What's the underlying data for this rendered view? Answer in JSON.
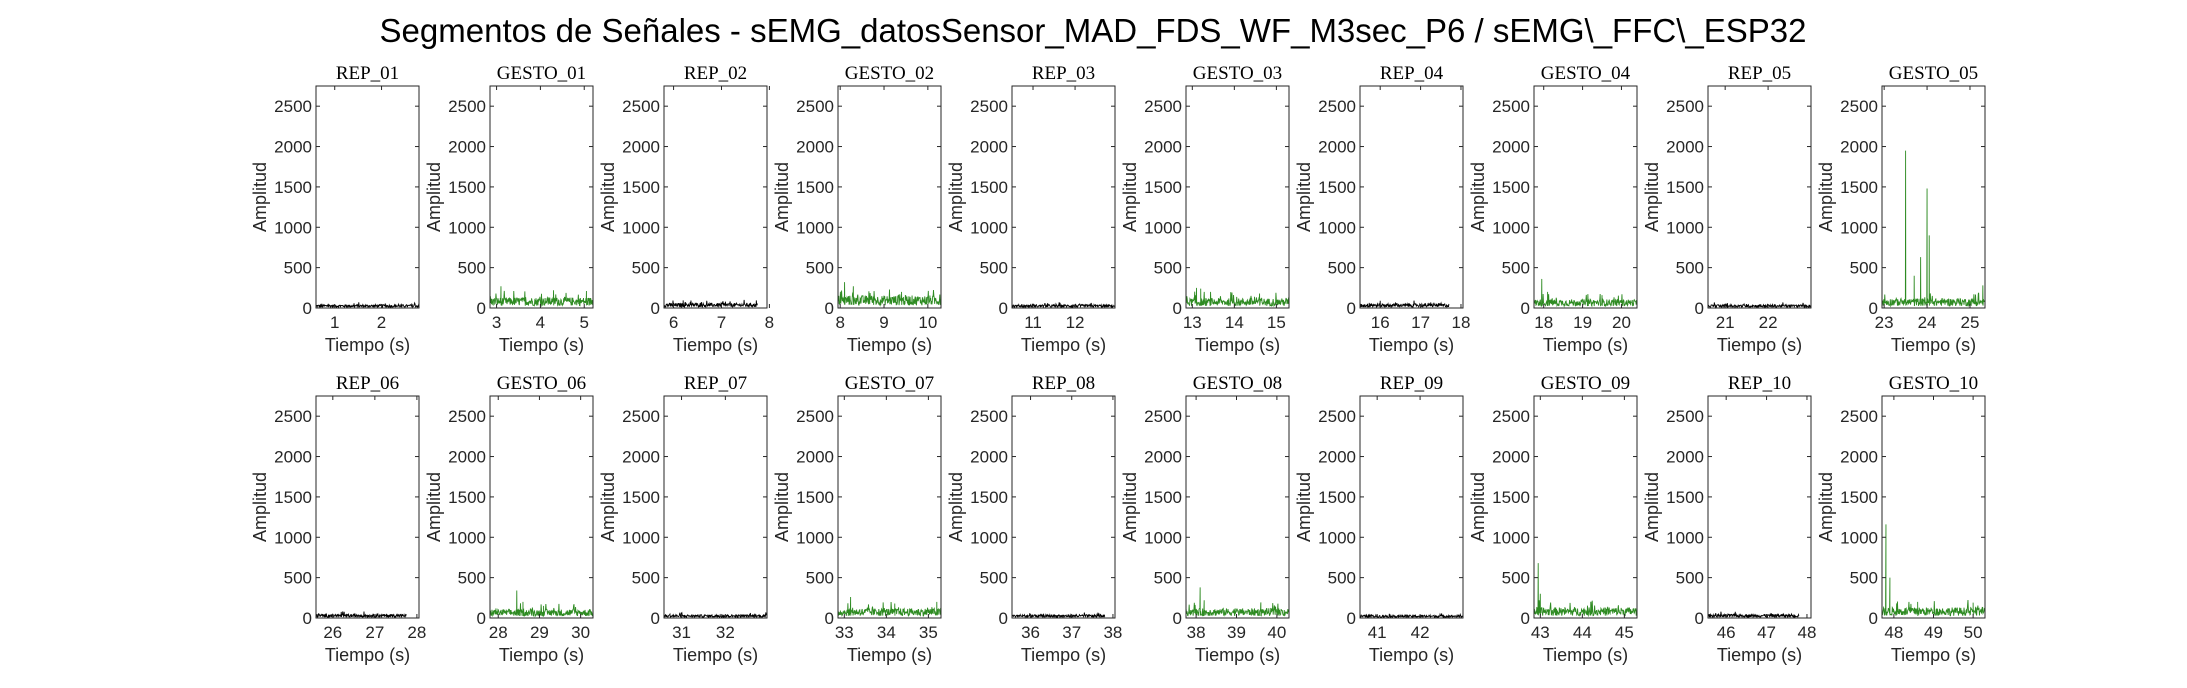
{
  "chart_data": {
    "type": "line",
    "title": "Segmentos de Señales - sEMG_datosSensor_MAD_FDS_WF_M3sec_P6 / sEMG\\_FFC\\_ESP32",
    "xlabel": "Tiempo (s)",
    "ylabel": "Amplitud",
    "ylim": [
      0,
      2750
    ],
    "yticks": [
      0,
      500,
      1000,
      1500,
      2000,
      2500
    ],
    "grid": false,
    "colors": {
      "rep": "#000000",
      "gesto": "#2e8b22"
    },
    "panels": [
      {
        "title": "REP_01",
        "kind": "rep",
        "xlim": [
          0.6,
          2.8
        ],
        "xticks": [
          1,
          2
        ],
        "x_start": 0.6,
        "x_end": 2.8,
        "baseline": 35,
        "peaks": []
      },
      {
        "title": "GESTO_01",
        "kind": "gesto",
        "xlim": [
          2.85,
          5.2
        ],
        "xticks": [
          3,
          4,
          5
        ],
        "x_start": 2.85,
        "x_end": 5.2,
        "baseline": 110,
        "peaks": [
          {
            "x": 3.1,
            "y": 270
          },
          {
            "x": 4.3,
            "y": 220
          },
          {
            "x": 5.05,
            "y": 210
          }
        ]
      },
      {
        "title": "REP_02",
        "kind": "rep",
        "xlim": [
          5.8,
          7.95
        ],
        "xticks": [
          6,
          7,
          8
        ],
        "x_start": 5.8,
        "x_end": 7.75,
        "baseline": 50,
        "peaks": [
          {
            "x": 6.2,
            "y": 95
          }
        ]
      },
      {
        "title": "GESTO_02",
        "kind": "gesto",
        "xlim": [
          7.95,
          10.3
        ],
        "xticks": [
          8,
          9,
          10
        ],
        "x_start": 7.95,
        "x_end": 10.3,
        "baseline": 130,
        "peaks": [
          {
            "x": 8.1,
            "y": 320
          },
          {
            "x": 8.3,
            "y": 270
          },
          {
            "x": 9.4,
            "y": 200
          }
        ]
      },
      {
        "title": "REP_03",
        "kind": "rep",
        "xlim": [
          10.5,
          12.95
        ],
        "xticks": [
          11,
          12
        ],
        "x_start": 10.5,
        "x_end": 12.95,
        "baseline": 35,
        "peaks": []
      },
      {
        "title": "GESTO_03",
        "kind": "gesto",
        "xlim": [
          12.85,
          15.3
        ],
        "xticks": [
          13,
          14,
          15
        ],
        "x_start": 12.85,
        "x_end": 15.3,
        "baseline": 100,
        "peaks": [
          {
            "x": 13.1,
            "y": 250
          },
          {
            "x": 13.2,
            "y": 240
          },
          {
            "x": 14.6,
            "y": 180
          }
        ]
      },
      {
        "title": "REP_04",
        "kind": "rep",
        "xlim": [
          15.5,
          18.05
        ],
        "xticks": [
          16,
          17,
          18
        ],
        "x_start": 15.5,
        "x_end": 17.7,
        "baseline": 45,
        "peaks": [
          {
            "x": 16.0,
            "y": 90
          }
        ]
      },
      {
        "title": "GESTO_04",
        "kind": "gesto",
        "xlim": [
          17.75,
          20.4
        ],
        "xticks": [
          18,
          19,
          20
        ],
        "x_start": 17.75,
        "x_end": 20.4,
        "baseline": 90,
        "peaks": [
          {
            "x": 17.95,
            "y": 360
          },
          {
            "x": 18.1,
            "y": 200
          },
          {
            "x": 19.5,
            "y": 160
          }
        ]
      },
      {
        "title": "REP_05",
        "kind": "rep",
        "xlim": [
          20.6,
          23.0
        ],
        "xticks": [
          21,
          22
        ],
        "x_start": 20.6,
        "x_end": 23.0,
        "baseline": 35,
        "peaks": []
      },
      {
        "title": "GESTO_05",
        "kind": "gesto",
        "xlim": [
          22.95,
          25.35
        ],
        "xticks": [
          23,
          24,
          25
        ],
        "x_start": 22.95,
        "x_end": 25.35,
        "baseline": 100,
        "peaks": [
          {
            "x": 23.5,
            "y": 1950
          },
          {
            "x": 23.7,
            "y": 400
          },
          {
            "x": 23.85,
            "y": 630
          },
          {
            "x": 24.0,
            "y": 1480
          },
          {
            "x": 24.05,
            "y": 900
          },
          {
            "x": 25.3,
            "y": 280
          }
        ]
      },
      {
        "title": "REP_06",
        "kind": "rep",
        "xlim": [
          25.6,
          28.05
        ],
        "xticks": [
          26,
          27,
          28
        ],
        "x_start": 25.6,
        "x_end": 27.75,
        "baseline": 40,
        "peaks": [
          {
            "x": 26.2,
            "y": 75
          }
        ]
      },
      {
        "title": "GESTO_06",
        "kind": "gesto",
        "xlim": [
          27.8,
          30.3
        ],
        "xticks": [
          28,
          29,
          30
        ],
        "x_start": 27.8,
        "x_end": 30.3,
        "baseline": 90,
        "peaks": [
          {
            "x": 28.45,
            "y": 340
          },
          {
            "x": 28.6,
            "y": 200
          },
          {
            "x": 29.1,
            "y": 150
          }
        ]
      },
      {
        "title": "REP_07",
        "kind": "rep",
        "xlim": [
          30.6,
          32.95
        ],
        "xticks": [
          31,
          32
        ],
        "x_start": 30.6,
        "x_end": 32.95,
        "baseline": 35,
        "peaks": []
      },
      {
        "title": "GESTO_07",
        "kind": "gesto",
        "xlim": [
          32.85,
          35.3
        ],
        "xticks": [
          33,
          34,
          35
        ],
        "x_start": 32.85,
        "x_end": 35.3,
        "baseline": 100,
        "peaks": [
          {
            "x": 33.15,
            "y": 260
          },
          {
            "x": 34.2,
            "y": 180
          },
          {
            "x": 35.2,
            "y": 200
          }
        ]
      },
      {
        "title": "REP_08",
        "kind": "rep",
        "xlim": [
          35.55,
          38.05
        ],
        "xticks": [
          36,
          37,
          38
        ],
        "x_start": 35.55,
        "x_end": 37.8,
        "baseline": 35,
        "peaks": []
      },
      {
        "title": "GESTO_08",
        "kind": "gesto",
        "xlim": [
          37.75,
          40.3
        ],
        "xticks": [
          38,
          39,
          40
        ],
        "x_start": 37.75,
        "x_end": 40.3,
        "baseline": 100,
        "peaks": [
          {
            "x": 38.1,
            "y": 380
          },
          {
            "x": 38.2,
            "y": 220
          },
          {
            "x": 39.6,
            "y": 170
          }
        ]
      },
      {
        "title": "REP_09",
        "kind": "rep",
        "xlim": [
          40.6,
          43.0
        ],
        "xticks": [
          41,
          42
        ],
        "x_start": 40.6,
        "x_end": 43.0,
        "baseline": 30,
        "peaks": []
      },
      {
        "title": "GESTO_09",
        "kind": "gesto",
        "xlim": [
          42.85,
          45.3
        ],
        "xticks": [
          43,
          44,
          45
        ],
        "x_start": 42.85,
        "x_end": 45.3,
        "baseline": 110,
        "peaks": [
          {
            "x": 42.95,
            "y": 680
          },
          {
            "x": 43.0,
            "y": 300
          },
          {
            "x": 44.2,
            "y": 200
          }
        ]
      },
      {
        "title": "REP_10",
        "kind": "rep",
        "xlim": [
          45.55,
          48.1
        ],
        "xticks": [
          46,
          47,
          48
        ],
        "x_start": 45.55,
        "x_end": 47.8,
        "baseline": 40,
        "peaks": []
      },
      {
        "title": "GESTO_10",
        "kind": "gesto",
        "xlim": [
          47.7,
          50.3
        ],
        "xticks": [
          48,
          49,
          50
        ],
        "x_start": 47.7,
        "x_end": 50.3,
        "baseline": 110,
        "peaks": [
          {
            "x": 47.8,
            "y": 1160
          },
          {
            "x": 47.9,
            "y": 500
          },
          {
            "x": 48.6,
            "y": 200
          },
          {
            "x": 50.0,
            "y": 190
          }
        ]
      }
    ]
  }
}
